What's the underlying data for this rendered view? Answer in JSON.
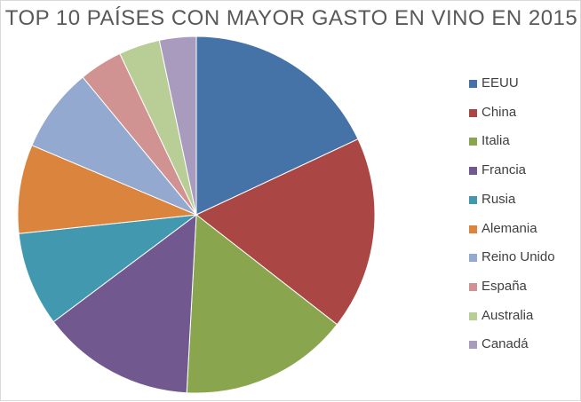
{
  "chart_data": {
    "type": "pie",
    "title": "TOP 10 PAÍSES CON MAYOR GASTO EN VINO EN 2015",
    "categories": [
      "EEUU",
      "China",
      "Italia",
      "Francia",
      "Rusia",
      "Alemania",
      "Reino Unido",
      "España",
      "Australia",
      "Canadá"
    ],
    "values": [
      17.9,
      17.4,
      15.2,
      13.8,
      8.5,
      8.0,
      7.6,
      3.9,
      3.7,
      3.3
    ],
    "colors": [
      "#4572a7",
      "#aa4643",
      "#89a54e",
      "#71588f",
      "#4198af",
      "#db843d",
      "#93a9cf",
      "#d19392",
      "#b9cd96",
      "#a99bbd"
    ],
    "start_angle_deg": 0,
    "direction": "clockwise",
    "legend_position": "right",
    "grid": false,
    "slice_border_color": "#ffffff"
  }
}
